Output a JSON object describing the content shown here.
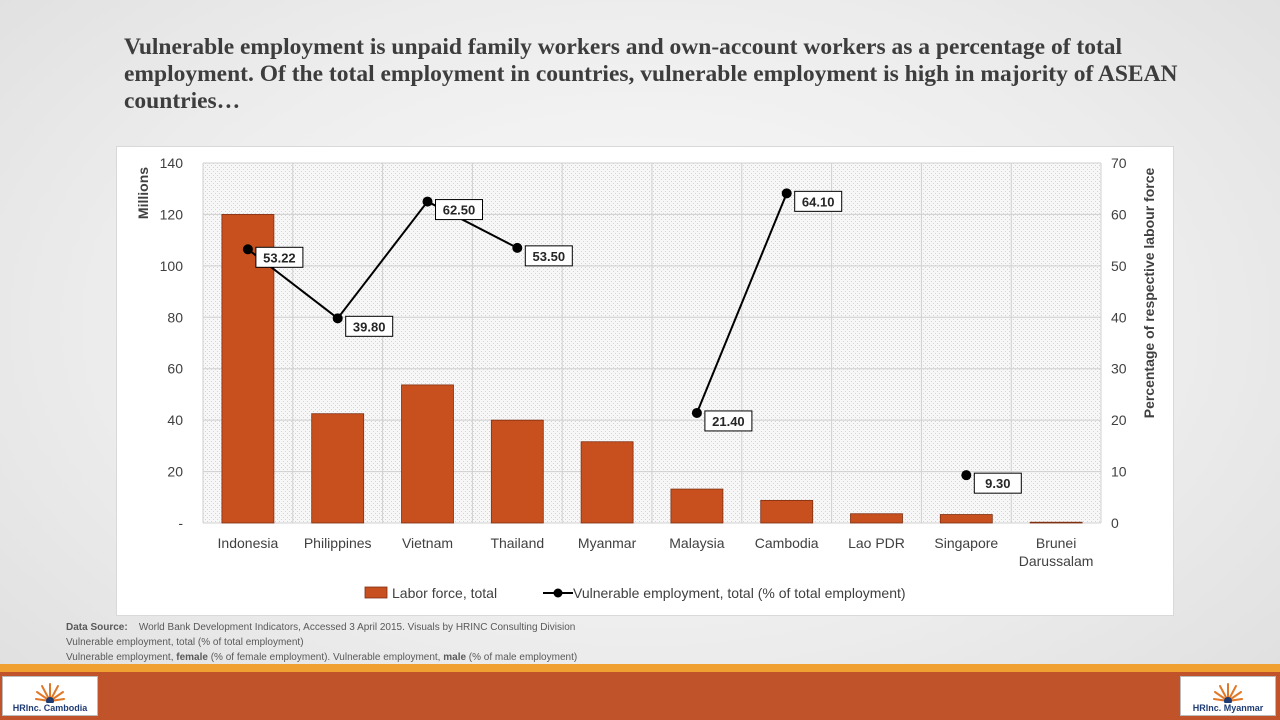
{
  "slide": {
    "title": "Vulnerable employment is unpaid family workers and own-account workers as a percentage of total employment.  Of the total employment in countries, vulnerable employment is high in majority of ASEAN countries…"
  },
  "source": {
    "label": "Data Source:",
    "text": "World Bank Development Indicators, Accessed 3 April 2015. Visuals by HRINC Consulting Division",
    "line2": "Vulnerable employment, total (% of total employment)",
    "line3_a": "Vulnerable employment, ",
    "line3_b": "female",
    "line3_c": " (% of female employment). Vulnerable employment, ",
    "line3_d": "male",
    "line3_e": " (% of male employment)"
  },
  "logos": {
    "left": "HRInc. Cambodia",
    "right": "HRInc. Myanmar"
  },
  "colors": {
    "bar": "#c8501e",
    "bar_edge": "#7f2f12",
    "line": "#000000",
    "accent_line": "#f0a030",
    "footer": "#c0532a"
  },
  "chart_data": {
    "type": "bar",
    "categories": [
      "Indonesia",
      "Philippines",
      "Vietnam",
      "Thailand",
      "Myanmar",
      "Malaysia",
      "Cambodia",
      "Lao PDR",
      "Singapore",
      "Brunei Darussalam"
    ],
    "category_lines": [
      [
        "Indonesia"
      ],
      [
        "Philippines"
      ],
      [
        "Vietnam"
      ],
      [
        "Thailand"
      ],
      [
        "Myanmar"
      ],
      [
        "Malaysia"
      ],
      [
        "Cambodia"
      ],
      [
        "Lao PDR"
      ],
      [
        "Singapore"
      ],
      [
        "Brunei",
        "Darussalam"
      ]
    ],
    "series": [
      {
        "name": "Labor force, total",
        "type": "bar",
        "axis": "left",
        "values": [
          120,
          42.5,
          53.7,
          40,
          31.6,
          13.2,
          8.8,
          3.6,
          3.3,
          0.2
        ]
      },
      {
        "name": "Vulnerable employment, total (% of total employment)",
        "type": "line",
        "axis": "right",
        "values": [
          53.22,
          39.8,
          62.5,
          53.5,
          null,
          21.4,
          64.1,
          null,
          9.3,
          null
        ],
        "labels": [
          "53.22",
          "39.80",
          "62.50",
          "53.50",
          null,
          "21.40",
          "64.10",
          null,
          "9.30",
          null
        ]
      }
    ],
    "left_axis": {
      "label": "Millions",
      "min": 0,
      "max": 140,
      "step": 20,
      "tick_labels": [
        "-",
        "20",
        "40",
        "60",
        "80",
        "100",
        "120",
        "140"
      ]
    },
    "right_axis": {
      "label": "Percentage of respective labour force",
      "min": 0,
      "max": 70,
      "step": 10,
      "tick_labels": [
        "0",
        "10",
        "20",
        "30",
        "40",
        "50",
        "60",
        "70"
      ]
    },
    "grid": true,
    "legend_position": "bottom"
  }
}
